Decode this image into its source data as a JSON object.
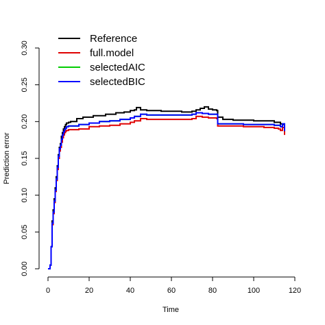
{
  "chart_data": {
    "type": "line",
    "step": true,
    "xlabel": "Time",
    "ylabel": "Prediction error",
    "xlim": [
      0,
      120
    ],
    "ylim": [
      0,
      0.3
    ],
    "xticks": [
      0,
      20,
      40,
      60,
      80,
      100,
      120
    ],
    "xtick_labels": [
      "0",
      "20",
      "40",
      "60",
      "80",
      "100",
      "120"
    ],
    "yticks": [
      0,
      0.05,
      0.1,
      0.15,
      0.2,
      0.25,
      0.3
    ],
    "ytick_labels": [
      "0.00",
      "0.05",
      "0.10",
      "0.15",
      "0.20",
      "0.25",
      "0.30"
    ],
    "grid": false,
    "legend_position": "top-left",
    "series": [
      {
        "name": "Reference",
        "color": "#000000",
        "x": [
          0,
          1,
          1.5,
          2,
          2.5,
          3,
          3.5,
          4,
          4.5,
          5,
          5.5,
          6,
          6.5,
          7,
          7.5,
          8,
          8.5,
          9,
          10,
          11,
          12,
          14,
          17,
          22,
          28,
          33,
          37,
          40,
          42,
          43,
          45,
          48,
          55,
          65,
          70,
          72,
          74,
          76,
          78,
          80,
          82,
          82.5,
          85,
          90,
          100,
          105,
          110,
          113,
          114,
          115
        ],
        "y": [
          0,
          0.005,
          0.03,
          0.065,
          0.08,
          0.095,
          0.11,
          0.125,
          0.14,
          0.155,
          0.165,
          0.17,
          0.18,
          0.185,
          0.19,
          0.193,
          0.196,
          0.198,
          0.199,
          0.2,
          0.2,
          0.204,
          0.206,
          0.208,
          0.21,
          0.212,
          0.213,
          0.215,
          0.216,
          0.219,
          0.216,
          0.215,
          0.214,
          0.213,
          0.214,
          0.216,
          0.218,
          0.22,
          0.217,
          0.216,
          0.215,
          0.206,
          0.203,
          0.202,
          0.201,
          0.201,
          0.199,
          0.197,
          0.196,
          0.19
        ]
      },
      {
        "name": "full.model",
        "color": "#df0000",
        "x": [
          0,
          1,
          1.5,
          2,
          2.5,
          3,
          3.5,
          4,
          4.5,
          5,
          5.5,
          6,
          6.5,
          7,
          7.5,
          8,
          8.5,
          9,
          10,
          12,
          15,
          20,
          25,
          30,
          35,
          40,
          42,
          45,
          48,
          55,
          65,
          70,
          72,
          75,
          78,
          80,
          82,
          82.5,
          85,
          95,
          105,
          110,
          112,
          113,
          114,
          115
        ],
        "y": [
          0,
          0.005,
          0.03,
          0.06,
          0.075,
          0.09,
          0.105,
          0.12,
          0.135,
          0.15,
          0.16,
          0.165,
          0.172,
          0.178,
          0.182,
          0.185,
          0.187,
          0.188,
          0.189,
          0.189,
          0.19,
          0.193,
          0.194,
          0.195,
          0.197,
          0.199,
          0.201,
          0.204,
          0.203,
          0.203,
          0.203,
          0.204,
          0.207,
          0.206,
          0.205,
          0.205,
          0.204,
          0.194,
          0.194,
          0.193,
          0.192,
          0.191,
          0.19,
          0.188,
          0.192,
          0.182
        ]
      },
      {
        "name": "selectedAIC",
        "color": "#00cd00",
        "x": [
          0,
          1,
          1.5,
          2,
          2.5,
          3,
          3.5,
          4,
          4.5,
          5,
          5.5,
          6,
          6.5,
          7,
          7.5,
          8,
          8.5,
          9,
          10,
          12,
          15,
          20,
          25,
          30,
          35,
          40,
          42,
          45,
          48,
          55,
          65,
          70,
          72,
          75,
          78,
          80,
          82,
          82.5,
          85,
          95,
          105,
          110,
          112,
          113,
          114,
          115
        ],
        "y": [
          0,
          0.005,
          0.03,
          0.062,
          0.077,
          0.092,
          0.107,
          0.122,
          0.138,
          0.153,
          0.163,
          0.168,
          0.176,
          0.182,
          0.186,
          0.189,
          0.191,
          0.193,
          0.194,
          0.194,
          0.196,
          0.198,
          0.2,
          0.201,
          0.203,
          0.205,
          0.207,
          0.21,
          0.209,
          0.209,
          0.209,
          0.21,
          0.212,
          0.211,
          0.21,
          0.21,
          0.21,
          0.197,
          0.197,
          0.196,
          0.196,
          0.195,
          0.195,
          0.193,
          0.197,
          0.187
        ]
      },
      {
        "name": "selectedBIC",
        "color": "#0000ff",
        "x": [
          0,
          1,
          1.5,
          2,
          2.5,
          3,
          3.5,
          4,
          4.5,
          5,
          5.5,
          6,
          6.5,
          7,
          7.5,
          8,
          8.5,
          9,
          10,
          12,
          15,
          20,
          25,
          30,
          35,
          40,
          42,
          45,
          48,
          55,
          65,
          70,
          72,
          75,
          78,
          80,
          82,
          82.5,
          85,
          95,
          105,
          110,
          112,
          113,
          114,
          115
        ],
        "y": [
          0,
          0.005,
          0.03,
          0.062,
          0.077,
          0.092,
          0.107,
          0.122,
          0.138,
          0.153,
          0.163,
          0.168,
          0.176,
          0.182,
          0.186,
          0.189,
          0.191,
          0.193,
          0.194,
          0.194,
          0.196,
          0.198,
          0.2,
          0.201,
          0.203,
          0.205,
          0.207,
          0.21,
          0.209,
          0.209,
          0.209,
          0.21,
          0.212,
          0.211,
          0.21,
          0.21,
          0.21,
          0.197,
          0.197,
          0.196,
          0.196,
          0.195,
          0.195,
          0.193,
          0.197,
          0.187
        ]
      }
    ]
  }
}
